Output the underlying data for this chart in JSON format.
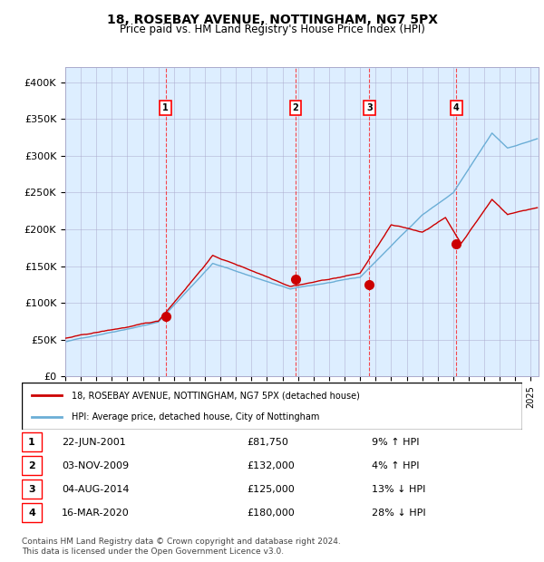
{
  "title": "18, ROSEBAY AVENUE, NOTTINGHAM, NG7 5PX",
  "subtitle": "Price paid vs. HM Land Registry's House Price Index (HPI)",
  "legend_line1": "18, ROSEBAY AVENUE, NOTTINGHAM, NG7 5PX (detached house)",
  "legend_line2": "HPI: Average price, detached house, City of Nottingham",
  "footnote1": "Contains HM Land Registry data © Crown copyright and database right 2024.",
  "footnote2": "This data is licensed under the Open Government Licence v3.0.",
  "hpi_color": "#6baed6",
  "price_color": "#cc0000",
  "background_chart": "#ddeeff",
  "grid_color": "#aaaacc",
  "purchases": [
    {
      "label": "1",
      "date_str": "22-JUN-2001",
      "date_num": 2001.47,
      "price": 81750,
      "pct": "9%",
      "dir": "↑"
    },
    {
      "label": "2",
      "date_str": "03-NOV-2009",
      "date_num": 2009.84,
      "price": 132000,
      "pct": "4%",
      "dir": "↑"
    },
    {
      "label": "3",
      "date_str": "04-AUG-2014",
      "date_num": 2014.59,
      "price": 125000,
      "pct": "13%",
      "dir": "↓"
    },
    {
      "label": "4",
      "date_str": "16-MAR-2020",
      "date_num": 2020.2,
      "price": 180000,
      "pct": "28%",
      "dir": "↓"
    }
  ],
  "xlim": [
    1995.0,
    2025.5
  ],
  "ylim": [
    0,
    420000
  ],
  "yticks": [
    0,
    50000,
    100000,
    150000,
    200000,
    250000,
    300000,
    350000,
    400000
  ],
  "ytick_labels": [
    "£0",
    "£50K",
    "£100K",
    "£150K",
    "£200K",
    "£250K",
    "£300K",
    "£350K",
    "£400K"
  ]
}
